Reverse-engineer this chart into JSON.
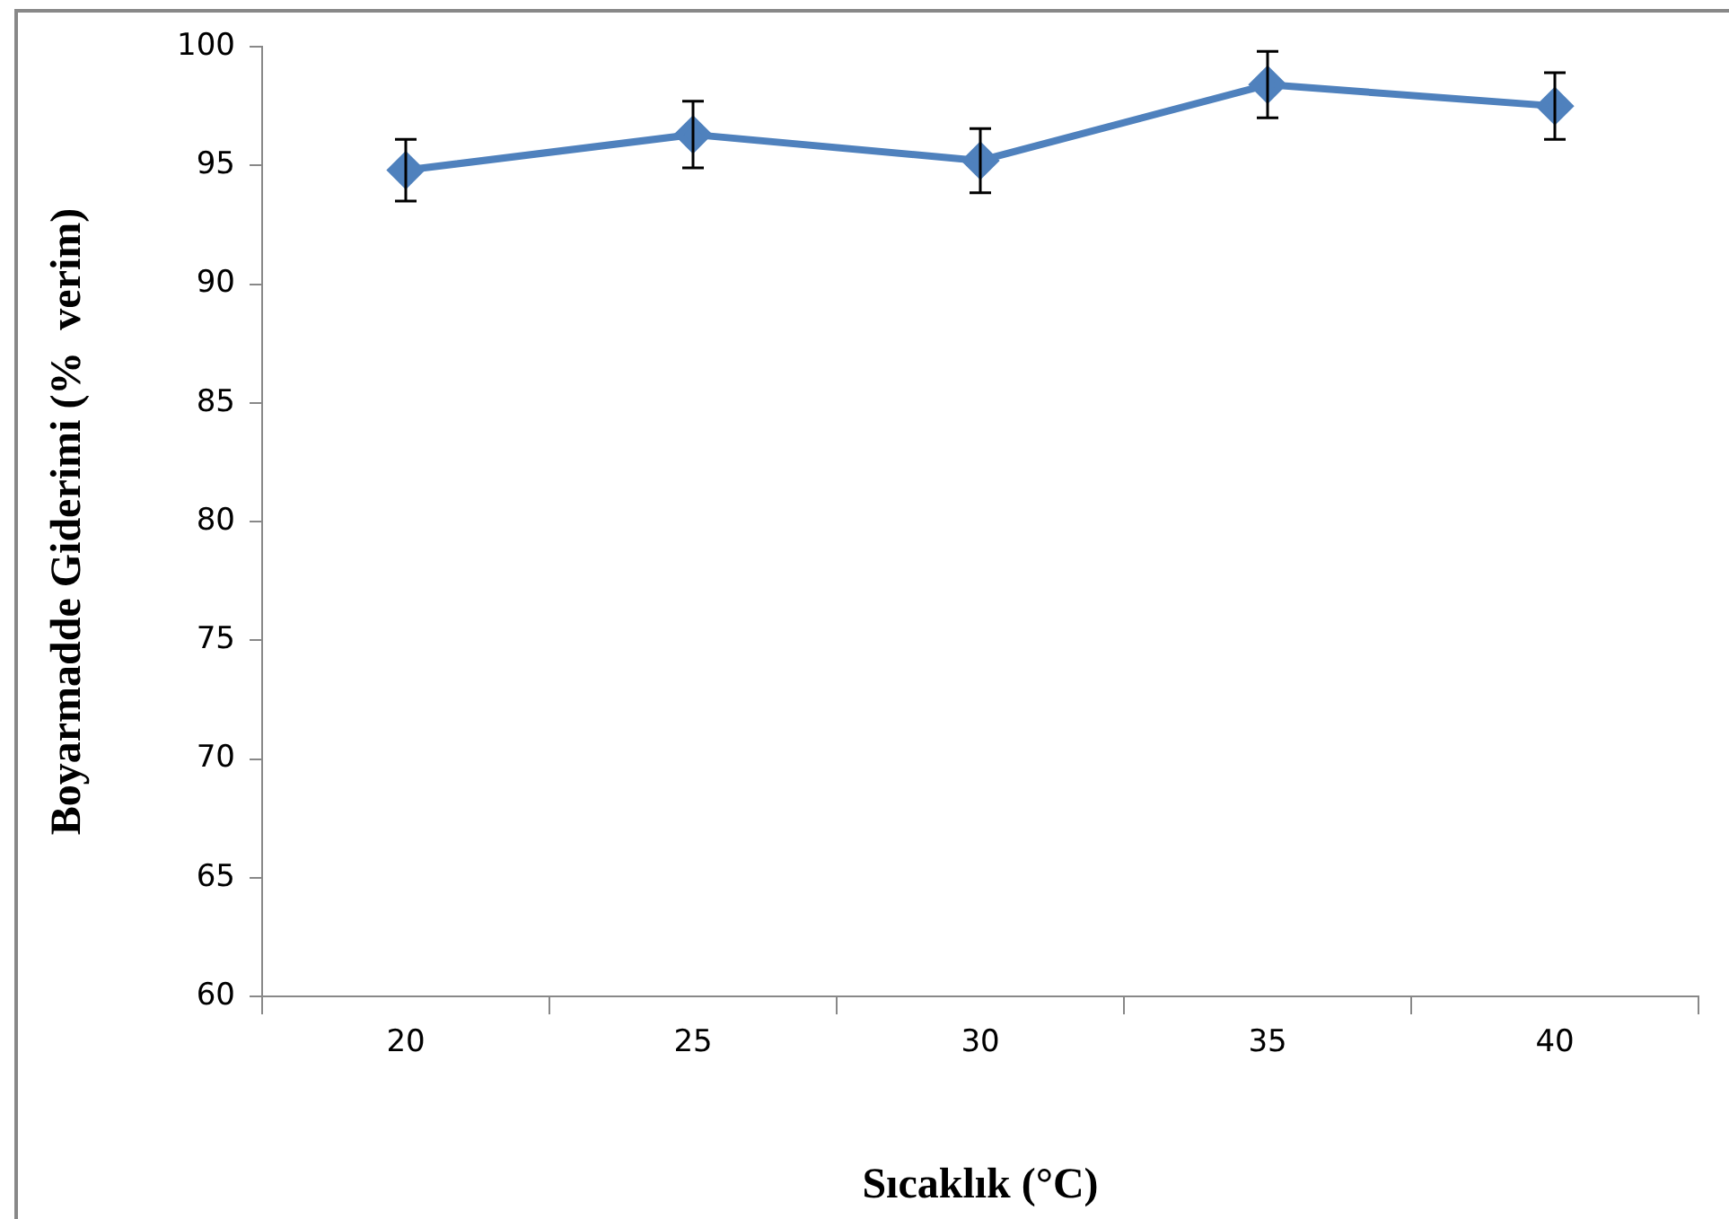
{
  "chart_data": {
    "type": "line",
    "xlabel": "Sıcaklık (°C)",
    "ylabel": "Boyarmadde Giderimi (%  verim)",
    "categories": [
      "20",
      "25",
      "30",
      "35",
      "40"
    ],
    "series": [
      {
        "color": "#4f81bd",
        "values": [
          94.8,
          96.3,
          95.2,
          98.4,
          97.5
        ],
        "errors": [
          1.3,
          1.4,
          1.35,
          1.4,
          1.4
        ]
      }
    ],
    "ylim": [
      60,
      100
    ],
    "yticks": [
      60,
      65,
      70,
      75,
      80,
      85,
      90,
      95,
      100
    ],
    "grid": false,
    "legend": false,
    "marker": "diamond",
    "line_style": "solid"
  }
}
